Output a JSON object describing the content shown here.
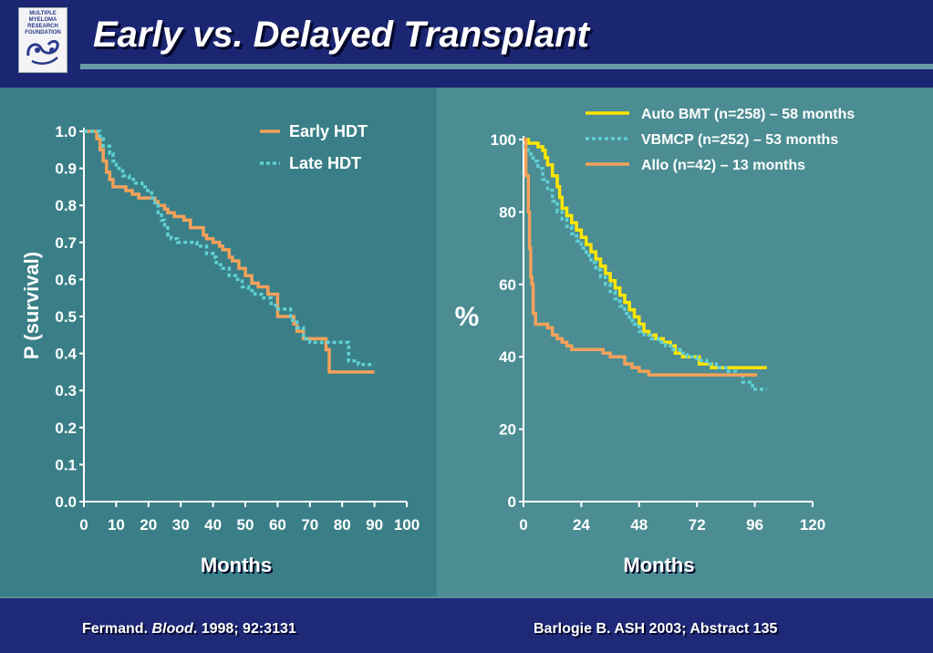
{
  "slide": {
    "title": "Early vs. Delayed Transplant",
    "logo": {
      "lines": [
        "MULTIPLE",
        "MYELOMA",
        "RESEARCH",
        "FOUNDATION"
      ]
    },
    "citation_left": {
      "author": "Fermand. ",
      "journal": "Blood",
      "rest": ". 1998; 92:3131"
    },
    "citation_right": "Barlogie B. ASH 2003; Abstract 135"
  },
  "colors": {
    "early_hdt": "#f5a15a",
    "late_hdt": "#5fd0d6",
    "auto_bmt": "#ffe600",
    "vbmcp": "#5fd0d6",
    "allo": "#f5a15a",
    "axis": "#ffffff"
  },
  "chart_data": [
    {
      "type": "line",
      "title": "",
      "xlabel": "Months",
      "ylabel": "P (survival)",
      "xlim": [
        0,
        100
      ],
      "ylim": [
        0,
        1
      ],
      "xticks": [
        0,
        10,
        20,
        30,
        40,
        50,
        60,
        70,
        80,
        90,
        100
      ],
      "xticklabels": [
        "0",
        "10",
        "20",
        "30",
        "40",
        "50",
        "60",
        "70",
        "80",
        "90",
        "100"
      ],
      "yticks": [
        0,
        0.1,
        0.2,
        0.3,
        0.4,
        0.5,
        0.6,
        0.7,
        0.8,
        0.9,
        1.0
      ],
      "yticklabels": [
        "0.0",
        "0.1",
        "0.2",
        "0.3",
        "0.4",
        "0.5",
        "0.6",
        "0.7",
        "0.8",
        "0.9",
        "1.0"
      ],
      "grid": false,
      "legend": "top-right",
      "series": [
        {
          "name": "Early HDT",
          "style": "solid",
          "color": "#f5a15a",
          "x": [
            0,
            3,
            4,
            5,
            6,
            7,
            8,
            9,
            11,
            13,
            15,
            17,
            19,
            21,
            22,
            23,
            25,
            26,
            27,
            28,
            30,
            31,
            32,
            33,
            35,
            37,
            38,
            40,
            42,
            43,
            45,
            46,
            48,
            50,
            52,
            54,
            57,
            60,
            63,
            65,
            66,
            68,
            70,
            73,
            75,
            76,
            79,
            81,
            84,
            87,
            90
          ],
          "y": [
            1.0,
            1.0,
            0.98,
            0.95,
            0.92,
            0.89,
            0.87,
            0.85,
            0.85,
            0.84,
            0.83,
            0.82,
            0.82,
            0.82,
            0.81,
            0.8,
            0.79,
            0.78,
            0.78,
            0.77,
            0.77,
            0.76,
            0.76,
            0.74,
            0.74,
            0.72,
            0.71,
            0.7,
            0.69,
            0.68,
            0.66,
            0.65,
            0.63,
            0.61,
            0.59,
            0.58,
            0.56,
            0.5,
            0.5,
            0.48,
            0.46,
            0.44,
            0.44,
            0.44,
            0.41,
            0.35,
            0.35,
            0.35,
            0.35,
            0.35,
            0.35
          ]
        },
        {
          "name": "Late HDT",
          "style": "dotted",
          "color": "#5fd0d6",
          "x": [
            0,
            4,
            5,
            6,
            8,
            9,
            10,
            12,
            14,
            16,
            18,
            19,
            21,
            22,
            23,
            24,
            25,
            26,
            27,
            29,
            31,
            33,
            35,
            37,
            38,
            40,
            41,
            43,
            45,
            47,
            49,
            51,
            53,
            55,
            57,
            58,
            60,
            63,
            64,
            66,
            68,
            70,
            74,
            76,
            78,
            80,
            82,
            85,
            88,
            90
          ],
          "y": [
            1.0,
            1.0,
            0.98,
            0.96,
            0.94,
            0.92,
            0.9,
            0.88,
            0.87,
            0.86,
            0.85,
            0.84,
            0.82,
            0.8,
            0.78,
            0.76,
            0.74,
            0.72,
            0.71,
            0.7,
            0.7,
            0.7,
            0.69,
            0.69,
            0.67,
            0.66,
            0.64,
            0.63,
            0.61,
            0.6,
            0.58,
            0.57,
            0.56,
            0.55,
            0.55,
            0.53,
            0.52,
            0.52,
            0.49,
            0.47,
            0.44,
            0.43,
            0.43,
            0.43,
            0.43,
            0.43,
            0.38,
            0.37,
            0.37,
            0.37
          ]
        }
      ]
    },
    {
      "type": "line",
      "title": "",
      "xlabel": "Months",
      "ylabel": "%",
      "xlim": [
        0,
        120
      ],
      "ylim": [
        0,
        100
      ],
      "xticks": [
        0,
        24,
        48,
        72,
        96,
        120
      ],
      "xticklabels": [
        "0",
        "24",
        "48",
        "72",
        "96",
        "120"
      ],
      "yticks": [
        0,
        20,
        40,
        60,
        80,
        100
      ],
      "yticklabels": [
        "0",
        "20",
        "40",
        "60",
        "80",
        "100"
      ],
      "grid": false,
      "legend": "top-right",
      "series": [
        {
          "name": "Auto BMT (n=258) – 58 months",
          "style": "solid",
          "color": "#ffe600",
          "x": [
            0,
            1,
            2,
            4,
            6,
            8,
            9,
            10,
            12,
            14,
            15,
            16,
            18,
            20,
            22,
            24,
            26,
            28,
            30,
            32,
            34,
            36,
            38,
            40,
            42,
            44,
            46,
            48,
            50,
            52,
            55,
            58,
            61,
            63,
            66,
            71,
            73,
            78,
            84,
            88,
            94,
            101
          ],
          "y": [
            100,
            100,
            99,
            99,
            98,
            97,
            95,
            93,
            90,
            87,
            84,
            81,
            79,
            77,
            75,
            73,
            71,
            69,
            67,
            65,
            63,
            61,
            59,
            57,
            55,
            53,
            51,
            49,
            47,
            46,
            45,
            44,
            43,
            41,
            40,
            40,
            38,
            37,
            37,
            37,
            37,
            37
          ]
        },
        {
          "name": "VBMCP (n=252) – 53 months",
          "style": "dotted",
          "color": "#5fd0d6",
          "x": [
            0,
            2,
            4,
            6,
            8,
            10,
            12,
            14,
            16,
            18,
            20,
            22,
            24,
            26,
            28,
            30,
            32,
            34,
            36,
            38,
            40,
            42,
            44,
            46,
            48,
            50,
            53,
            56,
            59,
            62,
            65,
            68,
            72,
            76,
            80,
            84,
            88,
            91,
            95,
            101
          ],
          "y": [
            98,
            96,
            94,
            92,
            89,
            86,
            83,
            80,
            78,
            76,
            74,
            72,
            70,
            68,
            66,
            64,
            62,
            60,
            58,
            56,
            54,
            52,
            50,
            49,
            47,
            46,
            45,
            44,
            43,
            42,
            41,
            40,
            39,
            38,
            37,
            36,
            35,
            33,
            31,
            31
          ]
        },
        {
          "name": "Allo (n=42) – 13 months",
          "style": "solid",
          "color": "#f5a15a",
          "x": [
            0,
            1,
            2,
            2.5,
            3,
            3.5,
            4,
            5,
            6,
            8,
            10,
            12,
            14,
            16,
            18,
            20,
            22,
            24,
            26,
            28,
            30,
            33,
            36,
            39,
            42,
            45,
            48,
            52,
            60,
            70,
            80,
            90,
            97
          ],
          "y": [
            100,
            90,
            80,
            70,
            62,
            60,
            52,
            49,
            49,
            49,
            48,
            46,
            45,
            44,
            43,
            42,
            42,
            42,
            42,
            42,
            42,
            41,
            40,
            40,
            38,
            37,
            36,
            35,
            35,
            35,
            35,
            35,
            35
          ]
        }
      ]
    }
  ]
}
